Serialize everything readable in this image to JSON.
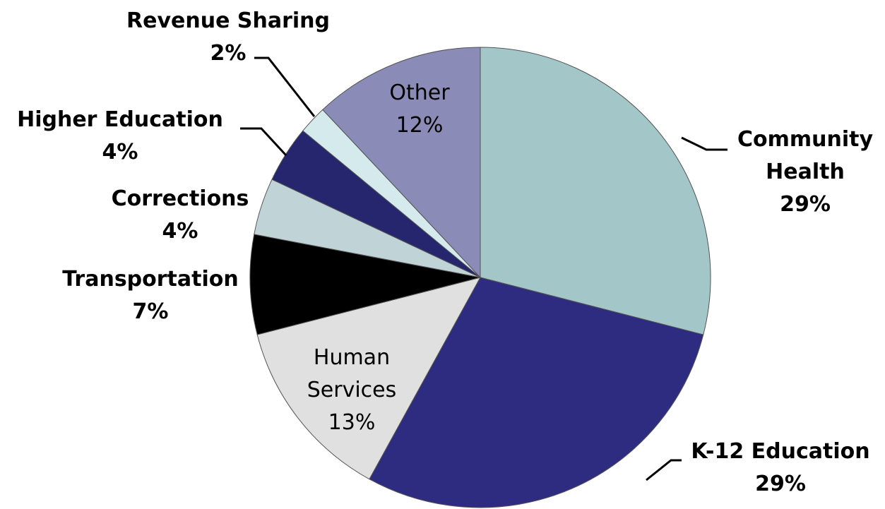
{
  "chart_data": {
    "type": "pie",
    "categories": [
      "Community Health",
      "K-12 Education",
      "Human Services",
      "Transportation",
      "Corrections",
      "Higher Education",
      "Revenue Sharing",
      "Other"
    ],
    "values": [
      29,
      29,
      13,
      7,
      4,
      4,
      2,
      12
    ],
    "value_labels": [
      "29%",
      "29%",
      "13%",
      "7%",
      "4%",
      "4%",
      "2%",
      "12%"
    ],
    "colors": [
      "#a3c6c8",
      "#2e2c80",
      "#e0e0e0",
      "#000000",
      "#c0d3d6",
      "#26266e",
      "#d5eaec",
      "#8b8bb8"
    ]
  }
}
